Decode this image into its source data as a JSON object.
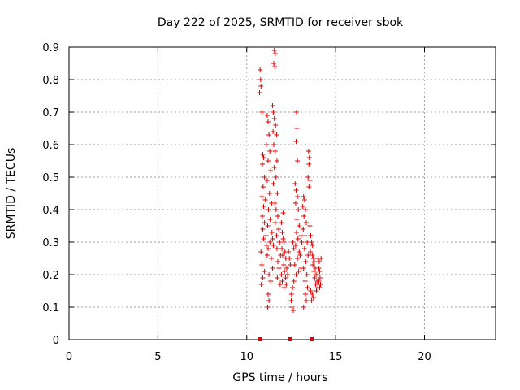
{
  "chart_data": {
    "type": "scatter",
    "title": "Day 222 of 2025, SRMTID for receiver sbok",
    "xlabel": "GPS time / hours",
    "ylabel": "SRMTID / TECUs",
    "xlim": [
      0,
      24
    ],
    "ylim": [
      0,
      0.9
    ],
    "xticks": [
      0,
      5,
      10,
      15,
      20
    ],
    "xtick_labels": [
      "0",
      "5",
      "10",
      "15",
      "20"
    ],
    "yticks": [
      0,
      0.1,
      0.2,
      0.3,
      0.4,
      0.5,
      0.6,
      0.7,
      0.8,
      0.9
    ],
    "ytick_labels": [
      "0",
      "0.1",
      "0.2",
      "0.3",
      "0.4",
      "0.5",
      "0.6",
      "0.7",
      "0.8",
      "0.9"
    ],
    "grid": true,
    "marker": "+",
    "color": "#e00000",
    "series": [
      {
        "name": "SRMTID",
        "points": [
          [
            10.75,
            0.83
          ],
          [
            10.78,
            0.8
          ],
          [
            10.8,
            0.78
          ],
          [
            10.72,
            0.76
          ],
          [
            10.85,
            0.7
          ],
          [
            10.9,
            0.57
          ],
          [
            10.95,
            0.56
          ],
          [
            10.88,
            0.54
          ],
          [
            11.0,
            0.5
          ],
          [
            10.92,
            0.47
          ],
          [
            10.85,
            0.44
          ],
          [
            11.05,
            0.43
          ],
          [
            10.95,
            0.41
          ],
          [
            10.88,
            0.38
          ],
          [
            11.0,
            0.36
          ],
          [
            10.9,
            0.34
          ],
          [
            11.08,
            0.32
          ],
          [
            10.95,
            0.31
          ],
          [
            11.1,
            0.29
          ],
          [
            10.8,
            0.27
          ],
          [
            11.15,
            0.26
          ],
          [
            10.85,
            0.23
          ],
          [
            11.0,
            0.21
          ],
          [
            10.9,
            0.19
          ],
          [
            10.82,
            0.17
          ],
          [
            11.2,
            0.14
          ],
          [
            11.25,
            0.12
          ],
          [
            11.18,
            0.1
          ],
          [
            11.15,
            0.69
          ],
          [
            11.2,
            0.67
          ],
          [
            11.25,
            0.63
          ],
          [
            11.1,
            0.6
          ],
          [
            11.3,
            0.58
          ],
          [
            11.2,
            0.55
          ],
          [
            11.35,
            0.52
          ],
          [
            11.15,
            0.49
          ],
          [
            11.28,
            0.45
          ],
          [
            11.4,
            0.42
          ],
          [
            11.22,
            0.4
          ],
          [
            11.32,
            0.37
          ],
          [
            11.18,
            0.35
          ],
          [
            11.42,
            0.33
          ],
          [
            11.3,
            0.3
          ],
          [
            11.2,
            0.28
          ],
          [
            11.38,
            0.25
          ],
          [
            11.45,
            0.22
          ],
          [
            11.25,
            0.2
          ],
          [
            11.35,
            0.18
          ],
          [
            11.55,
            0.89
          ],
          [
            11.6,
            0.88
          ],
          [
            11.52,
            0.85
          ],
          [
            11.58,
            0.84
          ],
          [
            11.45,
            0.72
          ],
          [
            11.5,
            0.7
          ],
          [
            11.55,
            0.68
          ],
          [
            11.62,
            0.66
          ],
          [
            11.48,
            0.64
          ],
          [
            11.68,
            0.63
          ],
          [
            11.52,
            0.6
          ],
          [
            11.6,
            0.58
          ],
          [
            11.7,
            0.55
          ],
          [
            11.55,
            0.53
          ],
          [
            11.65,
            0.5
          ],
          [
            11.5,
            0.48
          ],
          [
            11.72,
            0.45
          ],
          [
            11.58,
            0.42
          ],
          [
            11.65,
            0.4
          ],
          [
            11.75,
            0.38
          ],
          [
            11.6,
            0.36
          ],
          [
            11.8,
            0.34
          ],
          [
            11.68,
            0.32
          ],
          [
            11.85,
            0.3
          ],
          [
            11.7,
            0.28
          ],
          [
            11.9,
            0.26
          ],
          [
            11.75,
            0.24
          ],
          [
            11.82,
            0.22
          ],
          [
            11.95,
            0.2
          ],
          [
            11.72,
            0.19
          ],
          [
            11.88,
            0.17
          ],
          [
            12.0,
            0.33
          ],
          [
            12.05,
            0.31
          ],
          [
            12.1,
            0.3
          ],
          [
            11.98,
            0.28
          ],
          [
            12.15,
            0.27
          ],
          [
            12.02,
            0.26
          ],
          [
            12.2,
            0.25
          ],
          [
            12.08,
            0.23
          ],
          [
            12.25,
            0.22
          ],
          [
            12.12,
            0.21
          ],
          [
            12.3,
            0.2
          ],
          [
            12.18,
            0.19
          ],
          [
            12.0,
            0.18
          ],
          [
            12.22,
            0.17
          ],
          [
            12.1,
            0.16
          ],
          [
            12.8,
            0.7
          ],
          [
            12.82,
            0.65
          ],
          [
            12.78,
            0.61
          ],
          [
            12.85,
            0.55
          ],
          [
            12.72,
            0.48
          ],
          [
            12.78,
            0.46
          ],
          [
            12.85,
            0.44
          ],
          [
            12.75,
            0.42
          ],
          [
            12.9,
            0.4
          ],
          [
            12.82,
            0.37
          ],
          [
            12.95,
            0.35
          ],
          [
            12.8,
            0.33
          ],
          [
            12.88,
            0.31
          ],
          [
            12.75,
            0.29
          ],
          [
            12.95,
            0.27
          ],
          [
            12.85,
            0.25
          ],
          [
            12.7,
            0.23
          ],
          [
            12.92,
            0.21
          ],
          [
            12.78,
            0.2
          ],
          [
            12.65,
            0.18
          ],
          [
            12.58,
            0.16
          ],
          [
            12.52,
            0.14
          ],
          [
            12.5,
            0.12
          ],
          [
            12.55,
            0.1
          ],
          [
            12.62,
            0.09
          ],
          [
            13.2,
            0.44
          ],
          [
            13.25,
            0.43
          ],
          [
            13.15,
            0.41
          ],
          [
            13.3,
            0.4
          ],
          [
            13.22,
            0.38
          ],
          [
            13.35,
            0.36
          ],
          [
            13.18,
            0.34
          ],
          [
            13.28,
            0.32
          ],
          [
            13.4,
            0.3
          ],
          [
            13.25,
            0.28
          ],
          [
            13.45,
            0.26
          ],
          [
            13.32,
            0.24
          ],
          [
            13.2,
            0.22
          ],
          [
            13.38,
            0.2
          ],
          [
            13.28,
            0.18
          ],
          [
            13.42,
            0.16
          ],
          [
            13.3,
            0.14
          ],
          [
            13.35,
            0.12
          ],
          [
            13.2,
            0.1
          ],
          [
            13.48,
            0.58
          ],
          [
            13.52,
            0.56
          ],
          [
            13.5,
            0.54
          ],
          [
            13.45,
            0.5
          ],
          [
            13.55,
            0.49
          ],
          [
            13.5,
            0.47
          ],
          [
            13.7,
            0.26
          ],
          [
            13.75,
            0.25
          ],
          [
            13.8,
            0.24
          ],
          [
            13.72,
            0.23
          ],
          [
            13.85,
            0.22
          ],
          [
            13.78,
            0.21
          ],
          [
            13.9,
            0.2
          ],
          [
            13.82,
            0.19
          ],
          [
            13.95,
            0.18
          ],
          [
            13.88,
            0.17
          ],
          [
            14.0,
            0.16
          ],
          [
            13.92,
            0.15
          ],
          [
            13.68,
            0.14
          ],
          [
            13.75,
            0.13
          ],
          [
            13.6,
            0.15
          ],
          [
            13.65,
            0.12
          ],
          [
            14.02,
            0.25
          ],
          [
            14.08,
            0.24
          ],
          [
            14.05,
            0.22
          ],
          [
            14.1,
            0.21
          ],
          [
            14.12,
            0.19
          ],
          [
            14.06,
            0.18
          ],
          [
            14.15,
            0.17
          ],
          [
            14.0,
            0.2
          ],
          [
            14.18,
            0.25
          ],
          [
            14.1,
            0.16
          ],
          [
            11.45,
            0.31
          ],
          [
            11.5,
            0.29
          ],
          [
            11.95,
            0.36
          ],
          [
            12.05,
            0.39
          ],
          [
            12.35,
            0.27
          ],
          [
            12.4,
            0.25
          ],
          [
            12.45,
            0.23
          ],
          [
            12.6,
            0.3
          ],
          [
            12.65,
            0.28
          ],
          [
            13.05,
            0.32
          ],
          [
            13.1,
            0.3
          ],
          [
            13.0,
            0.26
          ],
          [
            13.05,
            0.22
          ],
          [
            13.55,
            0.35
          ],
          [
            13.6,
            0.32
          ],
          [
            13.65,
            0.3
          ],
          [
            13.7,
            0.29
          ],
          [
            13.58,
            0.27
          ]
        ]
      }
    ],
    "zero_markers_x": [
      10.75,
      12.45,
      13.65
    ]
  }
}
